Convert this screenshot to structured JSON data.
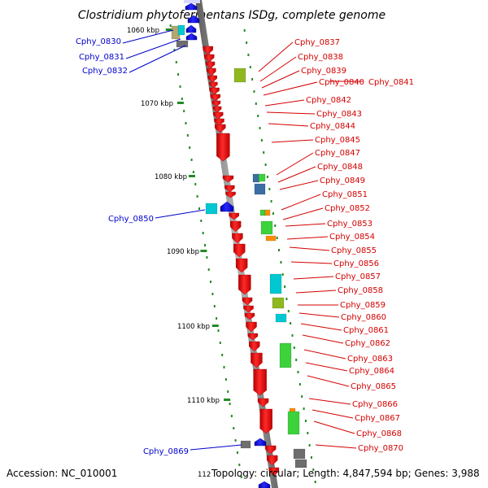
{
  "title": "Clostridium phytofermentans ISDg, complete genome",
  "footer": {
    "accession": "Accession: NC_010001",
    "cut_label": "112",
    "topology": "Topology: circular; Length: 4,847,594 bp; Genes: 3,988"
  },
  "colors": {
    "reverse_gene": "#ff0000",
    "forward_gene": "#0000ff",
    "reverse_label": "#d40000",
    "forward_label": "#0000cc",
    "backbone": "#8c8c8c",
    "tick": "#228b22",
    "cyan": "#00c8d2",
    "green": "#3cd23c",
    "olive": "#8fb81e",
    "gray": "#6e6e6e",
    "steelblue": "#3a6ea5",
    "orange": "#ff8c00",
    "tan": "#b3a770"
  },
  "scale_labels": [
    "1060 kbp",
    "1070 kbp",
    "1080 kbp",
    "1090 kbp",
    "1100 kbp",
    "1110 kbp"
  ],
  "forward_genes": [
    "Cphy_0830",
    "Cphy_0831",
    "Cphy_0832",
    "Cphy_0850",
    "Cphy_0869"
  ],
  "reverse_genes": [
    "Cphy_0837",
    "Cphy_0838",
    "Cphy_0839",
    "Cphy_0840",
    "Cphy_0841",
    "Cphy_0842",
    "Cphy_0843",
    "Cphy_0844",
    "Cphy_0845",
    "Cphy_0847",
    "Cphy_0848",
    "Cphy_0849",
    "Cphy_0851",
    "Cphy_0852",
    "Cphy_0853",
    "Cphy_0854",
    "Cphy_0855",
    "Cphy_0856",
    "Cphy_0857",
    "Cphy_0858",
    "Cphy_0859",
    "Cphy_0860",
    "Cphy_0861",
    "Cphy_0862",
    "Cphy_0863",
    "Cphy_0864",
    "Cphy_0865",
    "Cphy_0866",
    "Cphy_0867",
    "Cphy_0868",
    "Cphy_0870"
  ]
}
